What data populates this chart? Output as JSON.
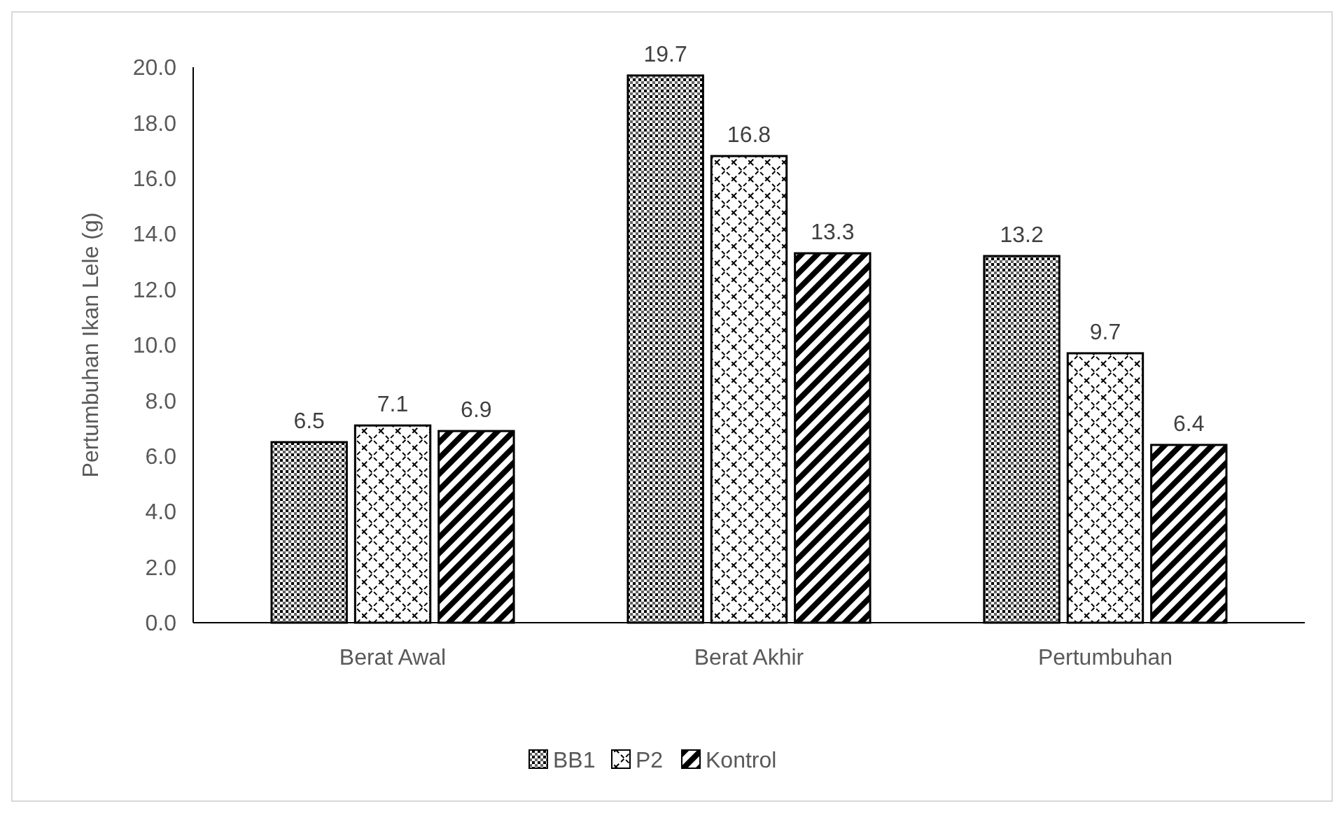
{
  "chart_data": {
    "type": "bar",
    "ylabel": "Pertumbuhan Ikan Lele (g)",
    "categories": [
      "Berat Awal",
      "Berat Akhir",
      "Pertumbuhan"
    ],
    "series": [
      {
        "name": "BB1",
        "color": "#000000",
        "values": [
          6.5,
          19.7,
          13.2
        ]
      },
      {
        "name": "P2",
        "color": "#000000",
        "values": [
          7.1,
          16.8,
          9.7
        ]
      },
      {
        "name": "Kontrol",
        "color": "#000000",
        "values": [
          6.9,
          13.3,
          6.4
        ]
      }
    ],
    "ylim": [
      0,
      20
    ],
    "yticks": [
      "0.0",
      "2.0",
      "4.0",
      "6.0",
      "8.0",
      "10.0",
      "12.0",
      "14.0",
      "16.0",
      "18.0",
      "20.0"
    ],
    "data_labels": true,
    "legend": "bottom",
    "grid": false
  }
}
